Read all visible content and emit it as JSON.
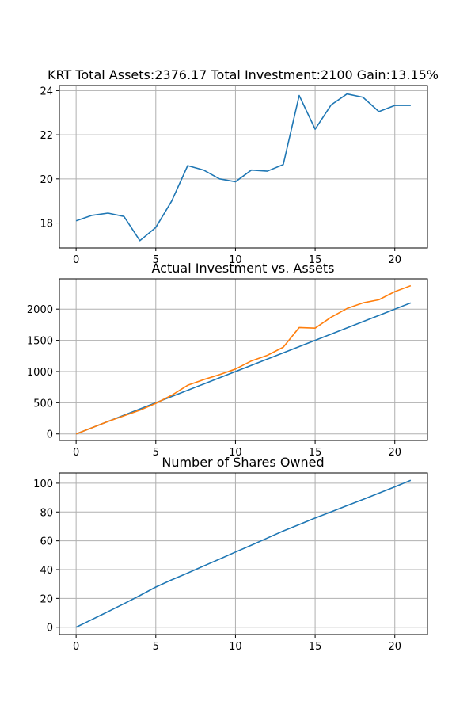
{
  "chart_data": [
    {
      "type": "line",
      "title": "KRT Total Assets:2376.17  Total Investment:2100  Gain:13.15%",
      "xlabel": "",
      "ylabel": "",
      "xlim": [
        -1.05,
        22.05
      ],
      "ylim": [
        16.87,
        24.23
      ],
      "xticks": [
        0,
        5,
        10,
        15,
        20
      ],
      "yticks": [
        18,
        20,
        22,
        24
      ],
      "grid": true,
      "x": [
        0,
        1,
        2,
        3,
        4,
        5,
        6,
        7,
        8,
        9,
        10,
        11,
        12,
        13,
        14,
        15,
        16,
        17,
        18,
        19,
        20,
        21
      ],
      "series": [
        {
          "color": "#1f77b4",
          "values": [
            18.1,
            18.35,
            18.45,
            18.3,
            17.2,
            17.8,
            19.0,
            20.6,
            20.4,
            20.0,
            19.87,
            20.4,
            20.35,
            20.65,
            23.78,
            22.25,
            23.35,
            23.85,
            23.7,
            23.05,
            23.33,
            23.33
          ]
        }
      ]
    },
    {
      "type": "line",
      "title": "Actual Investment vs. Assets",
      "xlabel": "",
      "ylabel": "",
      "xlim": [
        -1.05,
        22.05
      ],
      "ylim": [
        -105,
        2485
      ],
      "xticks": [
        0,
        5,
        10,
        15,
        20
      ],
      "yticks": [
        0,
        500,
        1000,
        1500,
        2000
      ],
      "grid": true,
      "x": [
        0,
        1,
        2,
        3,
        4,
        5,
        6,
        7,
        8,
        9,
        10,
        11,
        12,
        13,
        14,
        15,
        16,
        17,
        18,
        19,
        20,
        21
      ],
      "series": [
        {
          "color": "#1f77b4",
          "values": [
            0,
            100,
            200,
            300,
            400,
            500,
            600,
            700,
            800,
            900,
            1000,
            1100,
            1200,
            1300,
            1400,
            1500,
            1600,
            1700,
            1800,
            1900,
            2000,
            2100
          ]
        },
        {
          "color": "#ff7f0e",
          "values": [
            0,
            100,
            200,
            290,
            380,
            490,
            620,
            780,
            870,
            950,
            1040,
            1170,
            1260,
            1390,
            1705,
            1695,
            1870,
            2010,
            2100,
            2150,
            2280,
            2376
          ]
        }
      ]
    },
    {
      "type": "line",
      "title": "Number of Shares Owned",
      "xlabel": "",
      "ylabel": "",
      "xlim": [
        -1.05,
        22.05
      ],
      "ylim": [
        -5.1,
        107.1
      ],
      "xticks": [
        0,
        5,
        10,
        15,
        20
      ],
      "yticks": [
        0,
        20,
        40,
        60,
        80,
        100
      ],
      "grid": true,
      "x": [
        0,
        1,
        2,
        3,
        4,
        5,
        6,
        7,
        8,
        9,
        10,
        11,
        12,
        13,
        14,
        15,
        16,
        17,
        18,
        19,
        20,
        21
      ],
      "series": [
        {
          "color": "#1f77b4",
          "values": [
            0,
            5.4,
            10.8,
            16.3,
            22.0,
            27.9,
            32.9,
            37.6,
            42.5,
            47.3,
            52.2,
            57.0,
            61.9,
            66.8,
            71.3,
            75.8,
            80.1,
            84.4,
            88.7,
            93.1,
            97.5,
            102
          ]
        }
      ]
    }
  ]
}
